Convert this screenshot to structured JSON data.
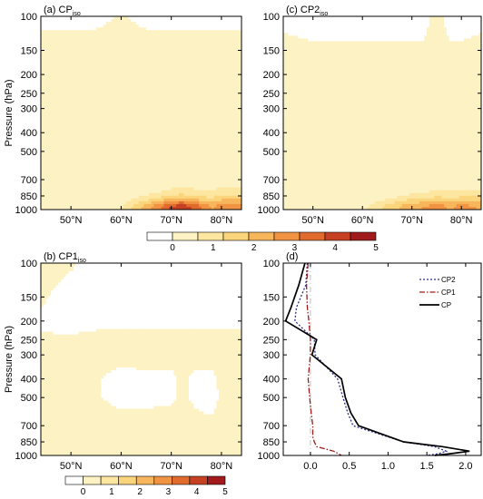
{
  "colors": {
    "levels": [
      "#ffffff",
      "#fdf2c4",
      "#fde6a0",
      "#fbd57c",
      "#f8b65c",
      "#f09342",
      "#e06b2d",
      "#c64124",
      "#a11a1c"
    ],
    "cp2": "#2b2d8c",
    "cp1": "#9b1c1c",
    "cp": "#000000",
    "zero": "#bdbdbd"
  },
  "pressure_ticks": [
    {
      "v": 100,
      "label": "100"
    },
    {
      "v": 150,
      "label": "150"
    },
    {
      "v": 200,
      "label": "200"
    },
    {
      "v": 250,
      "label": "250"
    },
    {
      "v": 300,
      "label": "300"
    },
    {
      "v": 400,
      "label": "400"
    },
    {
      "v": 500,
      "label": "500"
    },
    {
      "v": 700,
      "label": "700"
    },
    {
      "v": 850,
      "label": "850"
    },
    {
      "v": 1000,
      "label": "1000"
    }
  ],
  "lat_ticks": [
    {
      "v": 50,
      "label": "50°N"
    },
    {
      "v": 60,
      "label": "60°N"
    },
    {
      "v": 70,
      "label": "70°N"
    },
    {
      "v": 80,
      "label": "80°N"
    }
  ],
  "colorbar": {
    "labels": [
      "0",
      "1",
      "2",
      "3",
      "4",
      "5"
    ]
  },
  "chart_data": [
    {
      "panel": "(a)",
      "title": "(a) CP",
      "title_sub": "iso",
      "type": "heatmap",
      "xlabel": "",
      "ylabel": "Pressure (hPa)",
      "xlim": [
        44,
        84
      ],
      "ylim": [
        100,
        1000
      ],
      "y_scale": "log",
      "x": [
        44,
        50,
        55,
        60,
        65,
        70,
        72,
        75,
        78,
        80,
        84
      ],
      "y": [
        100,
        150,
        200,
        250,
        300,
        400,
        500,
        600,
        700,
        800,
        850,
        900,
        950,
        1000
      ],
      "values": [
        [
          0.1,
          0.1,
          0.1,
          0.3,
          0.1,
          0.1,
          0.1,
          0.1,
          0.1,
          0.1,
          0.1
        ],
        [
          0.5,
          0.5,
          0.5,
          0.5,
          0.5,
          0.5,
          0.5,
          0.5,
          0.5,
          0.5,
          0.5
        ],
        [
          0.6,
          0.6,
          0.6,
          0.6,
          0.6,
          0.6,
          0.6,
          0.6,
          0.6,
          0.6,
          0.6
        ],
        [
          0.6,
          0.6,
          0.6,
          0.6,
          0.6,
          0.6,
          0.6,
          0.6,
          0.6,
          0.6,
          0.8
        ],
        [
          0.5,
          0.5,
          0.5,
          0.5,
          0.5,
          0.5,
          0.5,
          0.5,
          0.5,
          0.5,
          0.7
        ],
        [
          0.5,
          0.5,
          0.5,
          0.5,
          0.6,
          0.7,
          0.7,
          0.8,
          0.7,
          0.7,
          0.7
        ],
        [
          0.5,
          0.5,
          0.5,
          0.5,
          0.8,
          1.1,
          1.1,
          1.0,
          0.8,
          0.8,
          0.9
        ],
        [
          0.5,
          0.5,
          0.5,
          0.5,
          0.9,
          1.2,
          1.2,
          1.1,
          0.9,
          0.9,
          1.0
        ],
        [
          0.5,
          0.5,
          0.5,
          0.6,
          1.0,
          1.3,
          1.3,
          1.2,
          1.1,
          1.2,
          1.2
        ],
        [
          0.5,
          0.5,
          0.6,
          0.8,
          1.3,
          1.7,
          1.8,
          1.7,
          1.6,
          1.8,
          1.9
        ],
        [
          0.5,
          0.5,
          0.7,
          1.0,
          1.7,
          2.3,
          2.5,
          2.2,
          2.0,
          2.3,
          2.4
        ],
        [
          0.5,
          0.6,
          0.8,
          1.2,
          2.3,
          3.3,
          3.7,
          3.1,
          2.6,
          3.0,
          3.1
        ],
        [
          0.5,
          0.7,
          1.0,
          1.5,
          3.0,
          4.5,
          5.0,
          4.2,
          3.3,
          3.7,
          3.6
        ],
        [
          0.5,
          0.7,
          1.1,
          1.7,
          3.2,
          5.0,
          5.5,
          4.6,
          3.5,
          3.9,
          3.8
        ]
      ]
    },
    {
      "panel": "(c)",
      "title": "(c) CP2",
      "title_sub": "iso",
      "type": "heatmap",
      "xlabel": "",
      "ylabel": "",
      "xlim": [
        44,
        84
      ],
      "ylim": [
        100,
        1000
      ],
      "y_scale": "log",
      "x": [
        44,
        50,
        55,
        60,
        65,
        70,
        72,
        75,
        78,
        80,
        84
      ],
      "y": [
        100,
        150,
        200,
        250,
        300,
        400,
        500,
        600,
        700,
        800,
        850,
        900,
        950,
        1000
      ],
      "values": [
        [
          0.1,
          0.1,
          0.1,
          0.1,
          0.1,
          0.1,
          0.1,
          0.4,
          0.1,
          0.1,
          0.1
        ],
        [
          0.4,
          0.3,
          0.3,
          0.3,
          0.3,
          0.3,
          0.3,
          0.3,
          0.3,
          0.3,
          0.4
        ],
        [
          0.6,
          0.5,
          0.5,
          0.5,
          0.5,
          0.5,
          0.5,
          0.5,
          0.5,
          0.5,
          0.6
        ],
        [
          0.7,
          0.6,
          0.6,
          0.6,
          0.6,
          0.6,
          0.6,
          0.6,
          0.6,
          0.6,
          0.8
        ],
        [
          0.8,
          0.6,
          0.6,
          0.6,
          0.6,
          0.6,
          0.6,
          0.6,
          0.6,
          0.6,
          0.8
        ],
        [
          0.7,
          0.6,
          0.6,
          0.6,
          0.6,
          0.7,
          0.8,
          0.9,
          0.8,
          0.8,
          0.8
        ],
        [
          0.6,
          0.6,
          0.6,
          0.6,
          0.7,
          0.8,
          0.9,
          1.0,
          1.0,
          1.0,
          1.0
        ],
        [
          0.6,
          0.6,
          0.6,
          0.6,
          0.8,
          0.9,
          1.0,
          1.1,
          1.1,
          1.1,
          1.1
        ],
        [
          0.6,
          0.6,
          0.6,
          0.7,
          0.9,
          1.0,
          1.1,
          1.2,
          1.2,
          1.2,
          1.2
        ],
        [
          0.6,
          0.6,
          0.6,
          0.8,
          1.1,
          1.4,
          1.5,
          1.6,
          1.6,
          1.6,
          1.6
        ],
        [
          0.6,
          0.6,
          0.7,
          0.9,
          1.3,
          1.8,
          1.9,
          2.1,
          2.0,
          2.1,
          2.1
        ],
        [
          0.6,
          0.6,
          0.8,
          1.1,
          1.8,
          2.5,
          2.6,
          2.9,
          2.6,
          2.9,
          2.7
        ],
        [
          0.6,
          0.7,
          0.9,
          1.3,
          2.3,
          3.2,
          3.3,
          3.7,
          3.2,
          3.7,
          3.2
        ],
        [
          0.6,
          0.7,
          1.0,
          1.5,
          2.5,
          3.5,
          3.6,
          4.0,
          3.4,
          4.0,
          3.4
        ]
      ]
    },
    {
      "panel": "(b)",
      "title": "(b) CP1",
      "title_sub": "iso",
      "type": "heatmap",
      "xlabel": "",
      "ylabel": "Pressure (hPa)",
      "xlim": [
        44,
        84
      ],
      "ylim": [
        100,
        1000
      ],
      "y_scale": "log",
      "x": [
        44,
        50,
        55,
        60,
        65,
        70,
        72,
        75,
        78,
        80,
        84
      ],
      "y": [
        100,
        150,
        200,
        250,
        300,
        400,
        500,
        600,
        700,
        800,
        850,
        900,
        950,
        1000
      ],
      "values": [
        [
          0.4,
          0.3,
          0.1,
          0.1,
          0.1,
          0.1,
          0.1,
          0.1,
          0.1,
          0.1,
          0.1
        ],
        [
          0.3,
          0.1,
          0.1,
          0.1,
          0.1,
          0.1,
          0.1,
          0.1,
          0.1,
          0.1,
          0.1
        ],
        [
          0.2,
          0.1,
          0.1,
          0.1,
          0.1,
          0.1,
          0.1,
          0.1,
          0.1,
          0.1,
          0.1
        ],
        [
          0.3,
          0.3,
          0.4,
          0.5,
          0.5,
          0.5,
          0.5,
          0.5,
          0.5,
          0.5,
          0.5
        ],
        [
          0.4,
          0.4,
          0.4,
          0.4,
          0.5,
          0.5,
          0.5,
          0.5,
          0.5,
          0.5,
          0.5
        ],
        [
          0.4,
          0.4,
          0.3,
          0.1,
          0.1,
          0.1,
          0.4,
          0.1,
          0.1,
          0.4,
          0.5
        ],
        [
          0.3,
          0.4,
          0.3,
          0.1,
          0.1,
          0.1,
          0.4,
          0.1,
          0.1,
          0.3,
          0.5
        ],
        [
          0.4,
          0.4,
          0.4,
          0.3,
          0.3,
          0.4,
          0.5,
          0.3,
          0.2,
          0.4,
          0.5
        ],
        [
          0.5,
          0.5,
          0.5,
          0.5,
          0.5,
          0.5,
          0.5,
          0.5,
          0.5,
          0.5,
          0.5
        ],
        [
          0.5,
          0.5,
          0.5,
          0.5,
          0.5,
          0.5,
          0.5,
          0.5,
          0.5,
          0.5,
          0.5
        ],
        [
          0.5,
          0.5,
          0.5,
          0.5,
          0.5,
          0.5,
          0.6,
          0.6,
          0.5,
          0.5,
          0.5
        ],
        [
          0.5,
          0.5,
          0.5,
          0.5,
          0.5,
          0.6,
          0.8,
          0.8,
          0.6,
          0.5,
          0.5
        ],
        [
          0.5,
          0.5,
          0.5,
          0.5,
          0.5,
          0.7,
          1.1,
          1.2,
          0.8,
          0.6,
          0.5
        ],
        [
          0.5,
          0.5,
          0.5,
          0.5,
          0.5,
          0.8,
          1.3,
          1.4,
          0.9,
          0.6,
          0.5
        ]
      ]
    },
    {
      "panel": "(d)",
      "title": "(d)",
      "type": "line",
      "xlabel": "",
      "ylabel": "",
      "xlim": [
        -0.35,
        2.2
      ],
      "ylim": [
        100,
        1000
      ],
      "y_scale": "log",
      "x_ticks": [
        {
          "v": 0,
          "label": "0.0"
        },
        {
          "v": 0.5,
          "label": "0.5"
        },
        {
          "v": 1.0,
          "label": "1.0"
        },
        {
          "v": 1.5,
          "label": "1.5"
        },
        {
          "v": 2.0,
          "label": "2.0"
        }
      ],
      "legend_position": "top-right",
      "series": [
        {
          "name": "CP2",
          "style": "dotted",
          "x": [
            -0.04,
            -0.06,
            -0.18,
            -0.2,
            0.05,
            0.06,
            0.35,
            0.42,
            0.48,
            0.55,
            1.2,
            1.6,
            1.75,
            1.65,
            1.5
          ],
          "y": [
            100,
            130,
            170,
            200,
            250,
            300,
            400,
            500,
            600,
            700,
            850,
            900,
            950,
            980,
            1000
          ]
        },
        {
          "name": "CP1",
          "style": "dash-dot",
          "x": [
            -0.03,
            -0.05,
            -0.04,
            -0.02,
            0.0,
            0.0,
            -0.03,
            -0.01,
            0.01,
            0.03,
            0.03,
            0.05,
            0.08,
            0.3,
            0.4
          ],
          "y": [
            100,
            130,
            170,
            200,
            250,
            300,
            400,
            500,
            600,
            700,
            800,
            850,
            900,
            950,
            1000
          ]
        },
        {
          "name": "CP",
          "style": "solid",
          "x": [
            -0.07,
            -0.15,
            -0.25,
            -0.32,
            0.08,
            0.02,
            0.4,
            0.45,
            0.52,
            0.62,
            1.2,
            1.7,
            2.05,
            1.8,
            1.6
          ],
          "y": [
            100,
            130,
            170,
            200,
            250,
            300,
            400,
            500,
            600,
            700,
            850,
            900,
            950,
            980,
            1000
          ]
        }
      ]
    }
  ]
}
